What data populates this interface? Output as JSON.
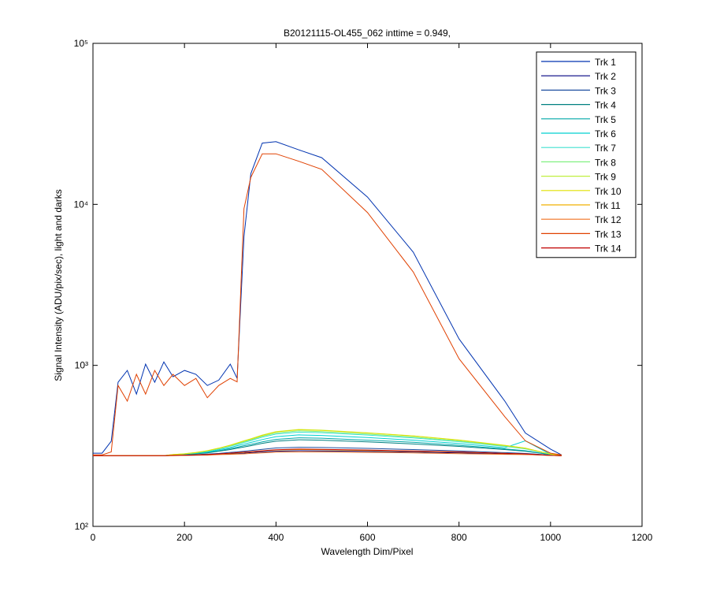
{
  "chart_data": {
    "type": "line",
    "title": "B20121115-OL455_062 inttime = 0.949,",
    "x_label": "Wavelength Dim/Pixel",
    "y_label": "Signal Intensity (ADU/pix/sec), light and darks",
    "log_y": true,
    "legend": "top-right",
    "xlim": [
      0,
      1200
    ],
    "xticks": [
      0,
      200,
      400,
      600,
      800,
      1000,
      1200
    ],
    "ylim": [
      100,
      100000
    ],
    "yticks": [
      {
        "value": 100,
        "label": "10²"
      },
      {
        "value": 1000,
        "label": "10³"
      },
      {
        "value": 10000,
        "label": "10⁴"
      },
      {
        "value": 100000,
        "label": "10⁵"
      }
    ],
    "x": [
      0,
      20,
      40,
      55,
      75,
      95,
      115,
      135,
      155,
      175,
      200,
      225,
      250,
      275,
      300,
      315,
      330,
      345,
      370,
      400,
      450,
      500,
      600,
      700,
      800,
      900,
      945,
      1000,
      1024
    ],
    "series": [
      {
        "name": "Trk 1",
        "color": "#0033b0",
        "values": [
          285,
          285,
          338,
          785,
          930,
          663,
          1018,
          785,
          1050,
          850,
          930,
          880,
          750,
          810,
          1018,
          830,
          6300,
          15500,
          24000,
          24500,
          21800,
          19500,
          11100,
          5050,
          1460,
          600,
          380,
          302,
          278
        ]
      },
      {
        "name": "Trk 2",
        "color": "#000080",
        "values": [
          275,
          275,
          275,
          275,
          275,
          275,
          275,
          275,
          275,
          276,
          276,
          277,
          278,
          280,
          282,
          284,
          285,
          287,
          290,
          293,
          295,
          294,
          292,
          289,
          286,
          282,
          280,
          276,
          275
        ]
      },
      {
        "name": "Trk 3",
        "color": "#1f4fa0",
        "values": [
          275,
          275,
          275,
          275,
          275,
          275,
          275,
          275,
          275,
          276,
          277,
          279,
          281,
          284,
          288,
          290,
          293,
          296,
          301,
          307,
          310,
          309,
          305,
          300,
          294,
          287,
          284,
          277,
          275
        ]
      },
      {
        "name": "Trk 4",
        "color": "#008080",
        "values": [
          275,
          275,
          275,
          275,
          275,
          275,
          275,
          275,
          275,
          277,
          279,
          282,
          286,
          293,
          300,
          306,
          311,
          317,
          328,
          338,
          345,
          343,
          335,
          325,
          314,
          300,
          293,
          279,
          275
        ]
      },
      {
        "name": "Trk 5",
        "color": "#00a8a8",
        "values": [
          275,
          275,
          275,
          275,
          275,
          275,
          275,
          275,
          275,
          277,
          280,
          283,
          288,
          295,
          304,
          310,
          317,
          323,
          335,
          347,
          355,
          353,
          343,
          333,
          319,
          303,
          295,
          279,
          275
        ]
      },
      {
        "name": "Trk 6",
        "color": "#00d0d0",
        "values": [
          275,
          275,
          275,
          275,
          275,
          275,
          275,
          275,
          275,
          278,
          281,
          285,
          290,
          299,
          309,
          317,
          324,
          332,
          346,
          361,
          370,
          367,
          356,
          343,
          327,
          308,
          340,
          280,
          275
        ]
      },
      {
        "name": "Trk 7",
        "color": "#40e0d0",
        "values": [
          275,
          275,
          275,
          275,
          275,
          275,
          275,
          275,
          275,
          278,
          282,
          286,
          293,
          303,
          315,
          323,
          332,
          341,
          358,
          374,
          385,
          382,
          369,
          354,
          336,
          314,
          303,
          281,
          275
        ]
      },
      {
        "name": "Trk 8",
        "color": "#80f080",
        "values": [
          275,
          275,
          275,
          275,
          275,
          275,
          275,
          275,
          275,
          279,
          282,
          287,
          294,
          304,
          317,
          326,
          336,
          345,
          363,
          380,
          392,
          388,
          374,
          359,
          339,
          316,
          304,
          281,
          275
        ]
      },
      {
        "name": "Trk 9",
        "color": "#c0f040",
        "values": [
          275,
          275,
          275,
          275,
          275,
          275,
          275,
          275,
          275,
          279,
          283,
          288,
          295,
          306,
          320,
          330,
          340,
          350,
          369,
          388,
          400,
          396,
          381,
          365,
          344,
          319,
          306,
          281,
          275
        ]
      },
      {
        "name": "Trk 10",
        "color": "#e0e000",
        "values": [
          275,
          275,
          275,
          275,
          275,
          275,
          275,
          275,
          275,
          279,
          282,
          287,
          295,
          306,
          319,
          329,
          339,
          349,
          367,
          386,
          398,
          394,
          380,
          364,
          343,
          318,
          306,
          281,
          275
        ]
      },
      {
        "name": "Trk 11",
        "color": "#f0b000",
        "values": [
          275,
          275,
          275,
          275,
          275,
          275,
          275,
          275,
          275,
          276,
          277,
          278,
          279,
          281,
          284,
          286,
          288,
          290,
          294,
          298,
          300,
          299,
          296,
          293,
          289,
          284,
          281,
          276,
          275
        ]
      },
      {
        "name": "Trk 12",
        "color": "#f07020",
        "values": [
          275,
          275,
          275,
          275,
          275,
          275,
          275,
          275,
          275,
          275,
          276,
          277,
          277,
          279,
          280,
          281,
          282,
          284,
          286,
          289,
          290,
          290,
          288,
          286,
          283,
          280,
          279,
          276,
          275
        ]
      },
      {
        "name": "Trk 13",
        "color": "#e04000",
        "values": [
          278,
          278,
          290,
          750,
          600,
          880,
          663,
          930,
          750,
          880,
          750,
          830,
          630,
          750,
          830,
          790,
          9400,
          14700,
          20600,
          20600,
          18500,
          16500,
          8900,
          3800,
          1100,
          480,
          340,
          285,
          278
        ]
      },
      {
        "name": "Trk 14",
        "color": "#c00000",
        "values": [
          275,
          275,
          275,
          275,
          275,
          275,
          275,
          275,
          275,
          276,
          277,
          278,
          279,
          282,
          285,
          287,
          289,
          291,
          295,
          299,
          302,
          301,
          298,
          294,
          290,
          284,
          282,
          276,
          275
        ]
      }
    ]
  }
}
